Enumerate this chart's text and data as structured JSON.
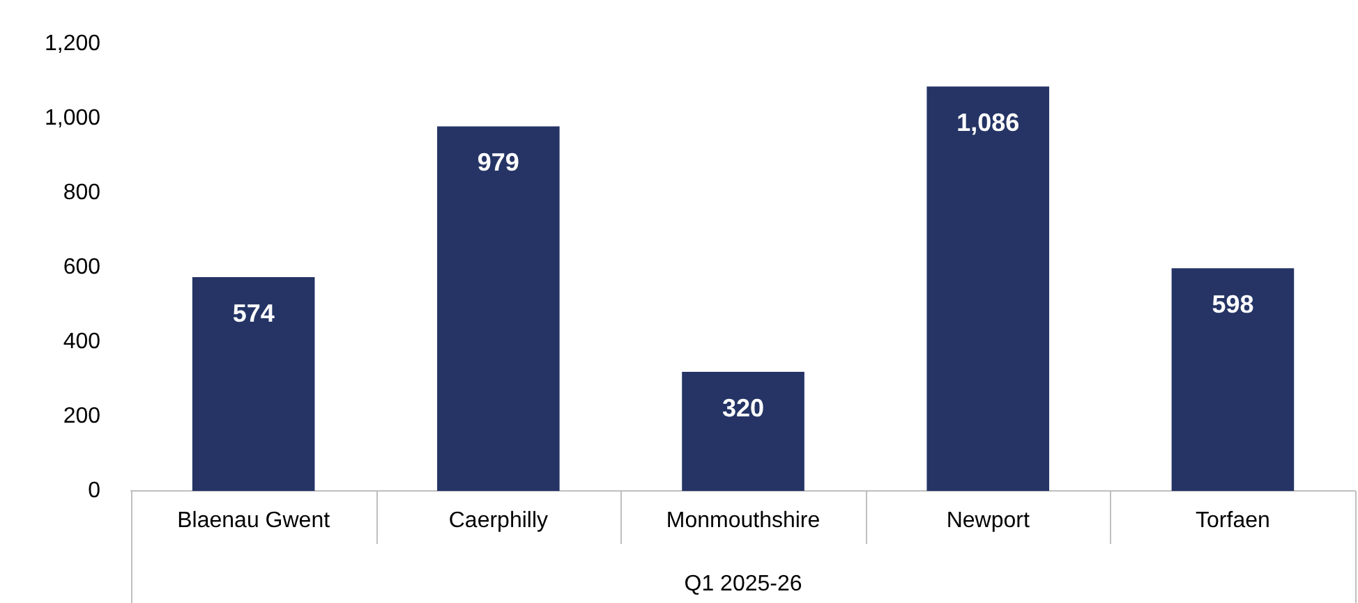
{
  "chart_data": {
    "type": "bar",
    "xlabel": "Q1 2025-26",
    "categories": [
      "Blaenau Gwent",
      "Caerphilly",
      "Monmouthshire",
      "Newport",
      "Torfaen"
    ],
    "values": [
      574,
      979,
      320,
      1086,
      598
    ],
    "color": "#253465",
    "value_labels": [
      "574",
      "979",
      "320",
      "1,086",
      "598"
    ],
    "ylim": [
      0,
      1200
    ],
    "yticks": [
      0,
      200,
      400,
      600,
      800,
      {
        "value": 1000,
        "label": "1,000"
      },
      {
        "value": 1200,
        "label": "1,200"
      }
    ],
    "grid": false,
    "legend": false
  }
}
